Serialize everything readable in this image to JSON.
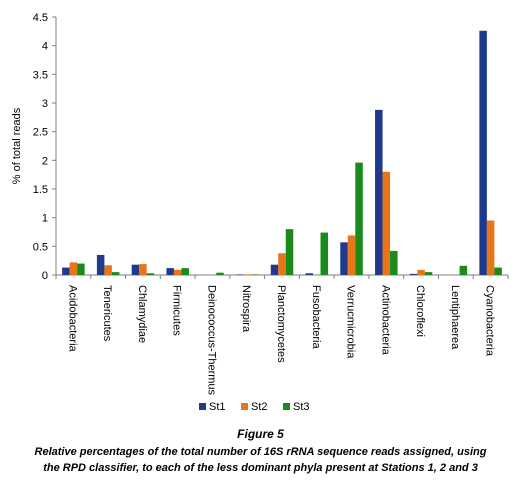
{
  "chart_data": {
    "type": "bar",
    "ylabel": "% of total reads",
    "ylim": [
      0,
      4.5
    ],
    "yticks": [
      "0",
      "0.5",
      "1",
      "1.5",
      "2",
      "2.5",
      "3",
      "3.5",
      "4",
      "4.5"
    ],
    "categories": [
      "Acidobacteria",
      "Tenericutes",
      "Chlamydiae",
      "Firmicutes",
      "Deinococcus-Thermus",
      "Nitrospira",
      "Planctomycetes",
      "Fusobacteria",
      "Verrucmicrobia",
      "Actinobacteria",
      "Chloroflexi",
      "Lentiphaerea",
      "Cyanobacteria"
    ],
    "series": [
      {
        "name": "St1",
        "color": "#1f3a8a",
        "values": [
          0.13,
          0.35,
          0.18,
          0.12,
          0.0,
          0.01,
          0.18,
          0.03,
          0.57,
          2.88,
          0.02,
          0.0,
          4.26
        ]
      },
      {
        "name": "St2",
        "color": "#e8751a",
        "values": [
          0.22,
          0.17,
          0.19,
          0.09,
          0.0,
          0.01,
          0.38,
          0.0,
          0.69,
          1.8,
          0.09,
          0.0,
          0.95
        ]
      },
      {
        "name": "St3",
        "color": "#1a8a1a",
        "values": [
          0.2,
          0.05,
          0.03,
          0.12,
          0.04,
          0.01,
          0.8,
          0.74,
          1.96,
          0.42,
          0.05,
          0.16,
          0.13
        ]
      }
    ],
    "legend_position": "bottom"
  },
  "figure": {
    "label": "Figure 5",
    "caption_line1": "Relative percentages of the total number of 16S rRNA sequence reads assigned, using",
    "caption_line2": "the RPD classifier, to each of the less dominant phyla present at Stations 1, 2 and 3"
  }
}
